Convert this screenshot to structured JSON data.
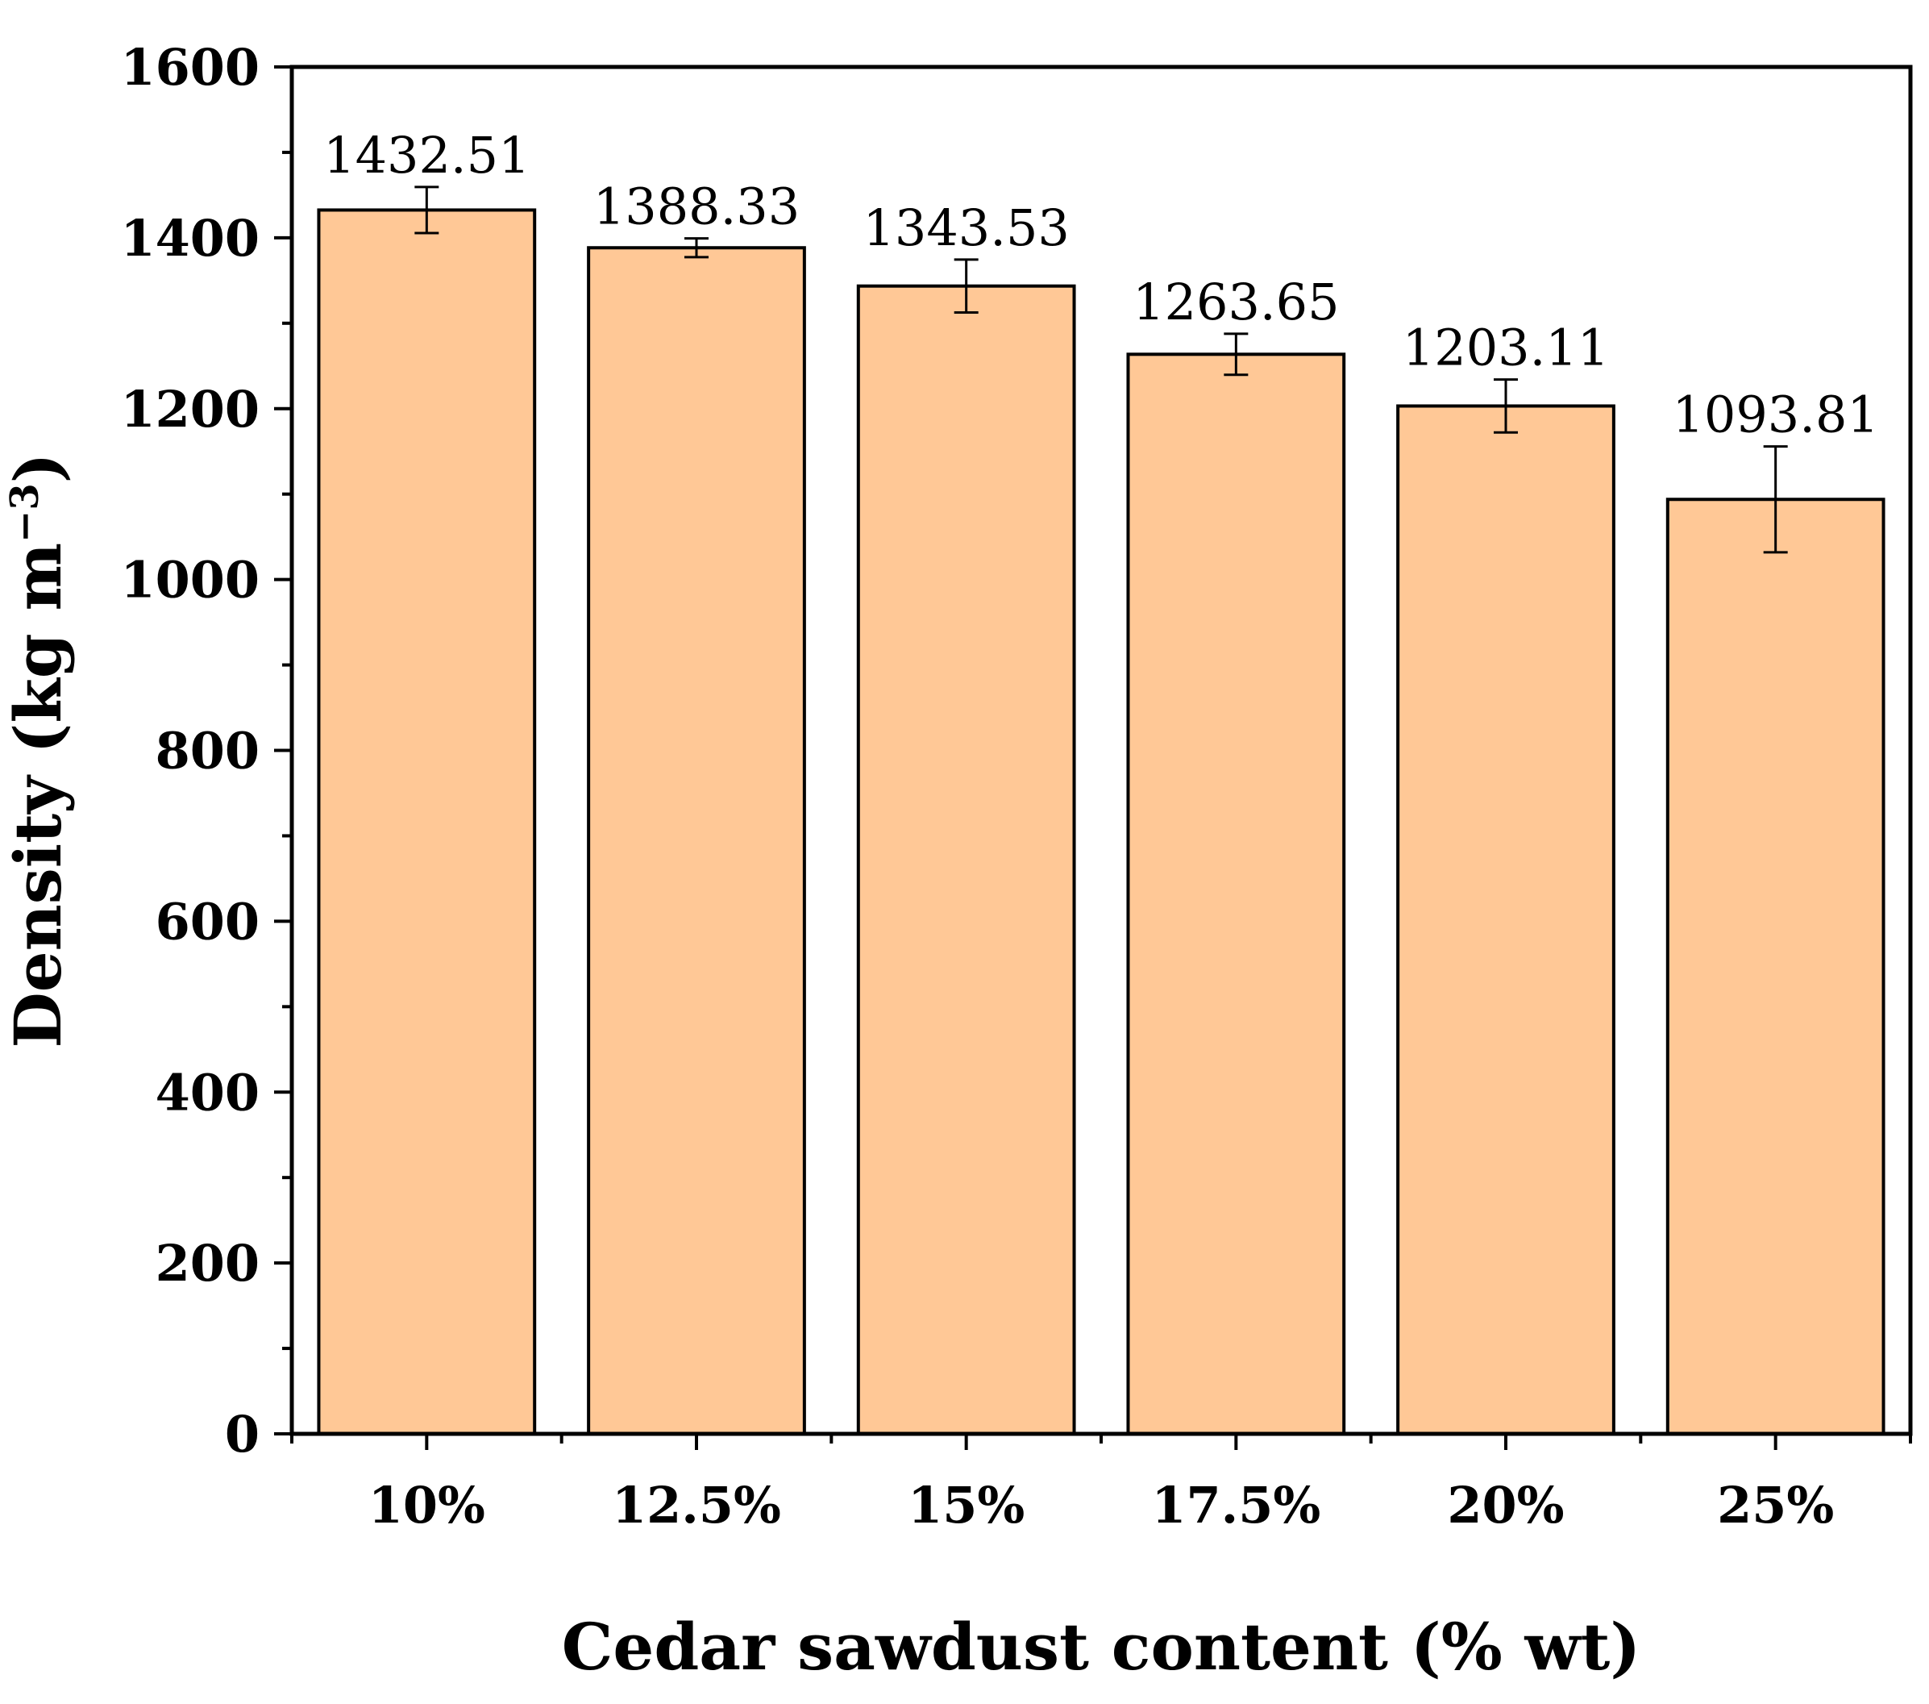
{
  "chart_data": {
    "type": "bar",
    "categories": [
      "10%",
      "12.5%",
      "15%",
      "17.5%",
      "20%",
      "25%"
    ],
    "values": [
      1432.51,
      1388.33,
      1343.53,
      1263.65,
      1203.11,
      1093.81
    ],
    "value_labels": [
      "1432.51",
      "1388.33",
      "1343.53",
      "1263.65",
      "1203.11",
      "1093.81"
    ],
    "error": [
      27,
      11,
      31,
      24,
      31,
      62
    ],
    "xlabel": "Cedar sawdust content (% wt)",
    "ylabel": {
      "main": "Density (kg m",
      "superscript": "−3",
      "close": ")"
    },
    "ylim": [
      0,
      1600
    ],
    "yticks": [
      0,
      200,
      400,
      600,
      800,
      1000,
      1200,
      1400,
      1600
    ],
    "ytick_labels": [
      "0",
      "200",
      "400",
      "600",
      "800",
      "1000",
      "1200",
      "1400",
      "1600"
    ],
    "y_minor_step": 100,
    "grid": false,
    "legend": "none",
    "colors": {
      "bar_fill": "#FFC896",
      "bar_stroke": "#000000",
      "axis": "#000000"
    }
  }
}
